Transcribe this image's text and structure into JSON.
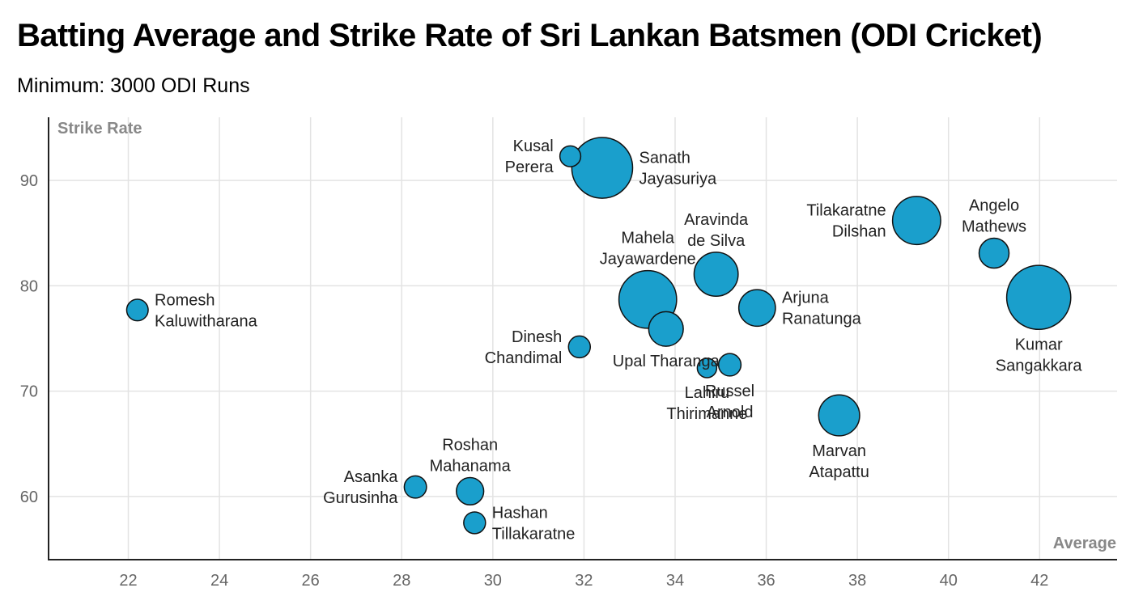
{
  "chart": {
    "title": "Batting Average and Strike Rate of Sri Lankan Batsmen (ODI Cricket)",
    "subtitle": "Minimum: 3000 ODI Runs"
  },
  "chart_data": {
    "type": "scatter",
    "title": "Batting Average and Strike Rate of Sri Lankan Batsmen (ODI Cricket)",
    "subtitle": "Minimum: 3000 ODI Runs",
    "xlabel": "Average",
    "ylabel": "Strike Rate",
    "xlim": [
      20.25,
      43.7
    ],
    "ylim": [
      54,
      96
    ],
    "x_ticks": [
      22,
      24,
      26,
      28,
      30,
      32,
      34,
      36,
      38,
      40,
      42
    ],
    "y_ticks": [
      60,
      70,
      80,
      90
    ],
    "grid": true,
    "marker_color": "#1a9fcc",
    "marker_edge_color": "#111111",
    "points": [
      {
        "label": [
          "Romesh",
          "Kaluwitharana"
        ],
        "x": 22.2,
        "y": 77.7,
        "size": 3711,
        "label_pos": "right"
      },
      {
        "label": [
          "Kusal",
          "Perera"
        ],
        "x": 31.7,
        "y": 92.3,
        "size": 3550,
        "label_pos": "left"
      },
      {
        "label": [
          "Sanath",
          "Jayasuriya"
        ],
        "x": 32.4,
        "y": 91.2,
        "size": 13430,
        "label_pos": "right"
      },
      {
        "label": [
          "Mahela",
          "Jayawardene"
        ],
        "x": 33.4,
        "y": 78.7,
        "size": 12650,
        "label_pos": "above"
      },
      {
        "label": [
          "Aravinda",
          "de Silva"
        ],
        "x": 34.9,
        "y": 81.1,
        "size": 9284,
        "label_pos": "above"
      },
      {
        "label": [
          "Upal Tharanga"
        ],
        "x": 33.8,
        "y": 75.9,
        "size": 6951,
        "label_pos": "below"
      },
      {
        "label": [
          "Dinesh",
          "Chandimal"
        ],
        "x": 31.9,
        "y": 74.2,
        "size": 3800,
        "label_pos": "left"
      },
      {
        "label": [
          "Lahiru",
          "Thirimanne"
        ],
        "x": 34.7,
        "y": 72.2,
        "size": 3194,
        "label_pos": "below"
      },
      {
        "label": [
          "Russel",
          "Arnold"
        ],
        "x": 35.2,
        "y": 72.5,
        "size": 3950,
        "label_pos": "below"
      },
      {
        "label": [
          "Arjuna",
          "Ranatunga"
        ],
        "x": 35.8,
        "y": 77.9,
        "size": 7456,
        "label_pos": "right"
      },
      {
        "label": [
          "Marvan",
          "Atapattu"
        ],
        "x": 37.6,
        "y": 67.7,
        "size": 8529,
        "label_pos": "below"
      },
      {
        "label": [
          "Tilakaratne",
          "Dilshan"
        ],
        "x": 39.3,
        "y": 86.2,
        "size": 10290,
        "label_pos": "left"
      },
      {
        "label": [
          "Angelo",
          "Mathews"
        ],
        "x": 41.0,
        "y": 83.1,
        "size": 5800,
        "label_pos": "above"
      },
      {
        "label": [
          "Kumar",
          "Sangakkara"
        ],
        "x": 41.98,
        "y": 78.9,
        "size": 14234,
        "label_pos": "below"
      },
      {
        "label": [
          "Roshan",
          "Mahanama"
        ],
        "x": 29.5,
        "y": 60.5,
        "size": 5162,
        "label_pos": "above"
      },
      {
        "label": [
          "Asanka",
          "Gurusinha"
        ],
        "x": 28.3,
        "y": 60.9,
        "size": 3902,
        "label_pos": "left"
      },
      {
        "label": [
          "Hashan",
          "Tillakaratne"
        ],
        "x": 29.6,
        "y": 57.5,
        "size": 3789,
        "label_pos": "right"
      }
    ]
  }
}
